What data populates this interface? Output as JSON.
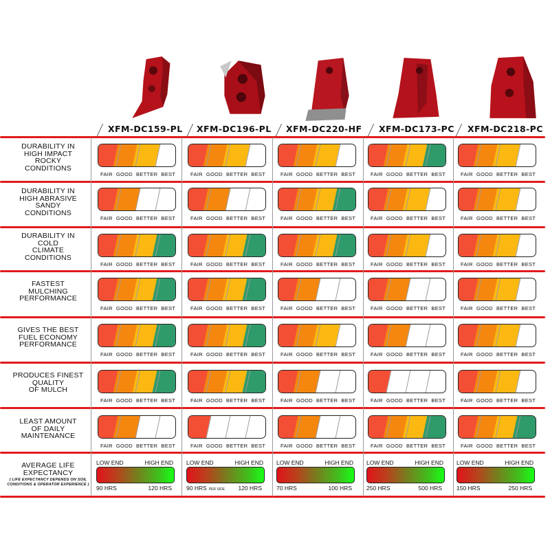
{
  "products": [
    {
      "name": "XFM-DC159-PL"
    },
    {
      "name": "XFM-DC196-PL"
    },
    {
      "name": "XFM-DC220-HF"
    },
    {
      "name": "XFM-DC173-PC"
    },
    {
      "name": "XFM-DC218-PC"
    }
  ],
  "scale_labels": [
    "FAIR",
    "GOOD",
    "BETTER",
    "BEST"
  ],
  "colors": {
    "fair": "#f24f34",
    "good": "#f5870f",
    "better": "#fbb811",
    "best": "#2f9a6a",
    "divider": "#e11b1b"
  },
  "rows": [
    {
      "label": [
        "DURABILITY IN",
        "HIGH IMPACT",
        "ROCKY",
        "CONDITIONS"
      ],
      "ratings": [
        3,
        3,
        3,
        4,
        3
      ]
    },
    {
      "label": [
        "DURABILITY IN",
        "HIGH ABRASIVE",
        "SANDY",
        "CONDITIONS"
      ],
      "ratings": [
        2,
        2,
        4,
        3,
        3
      ]
    },
    {
      "label": [
        "DURABILITY IN",
        "COLD",
        "CLIMATE",
        "CONDITIONS"
      ],
      "ratings": [
        4,
        4,
        4,
        3,
        3
      ]
    },
    {
      "label": [
        "FASTEST",
        "MULCHING",
        "PERFORMANCE"
      ],
      "ratings": [
        4,
        4,
        2,
        2,
        3
      ]
    },
    {
      "label": [
        "GIVES THE BEST",
        "FUEL ECONOMY",
        "PERFORMANCE"
      ],
      "ratings": [
        4,
        4,
        3,
        2,
        3
      ]
    },
    {
      "label": [
        "PRODUCES FINEST",
        "QUALITY",
        "OF MULCH"
      ],
      "ratings": [
        4,
        4,
        2,
        1,
        3
      ]
    },
    {
      "label": [
        "LEAST AMOUNT",
        "OF DAILY",
        "MAINTENANCE"
      ],
      "ratings": [
        2,
        1,
        2,
        4,
        4
      ]
    }
  ],
  "life": {
    "label": [
      "AVERAGE LIFE",
      "EXPECTANCY"
    ],
    "note": [
      "( Life Expectancy Depends on Soil",
      "Conditions & Operator Experience )"
    ],
    "low_label": "LOW END",
    "high_label": "HIGH END",
    "per_side": "PER SIDE",
    "values": [
      {
        "low": "90 HRS",
        "high": "120 HRS",
        "per_side": false
      },
      {
        "low": "90 HRS",
        "high": "120 HRS",
        "per_side": true
      },
      {
        "low": "70 HRS",
        "high": "100 HRS",
        "per_side": false
      },
      {
        "low": "250 HRS",
        "high": "500 HRS",
        "per_side": false
      },
      {
        "low": "150 HRS",
        "high": "250 HRS",
        "per_side": false
      }
    ]
  }
}
